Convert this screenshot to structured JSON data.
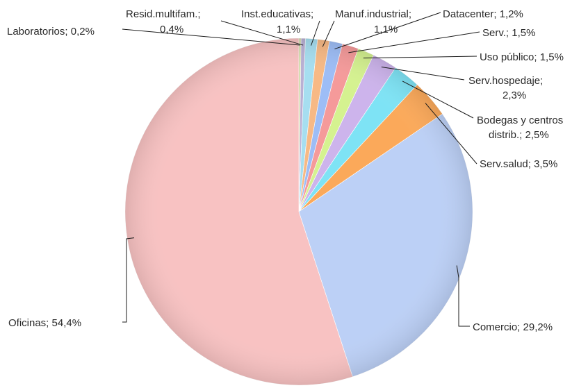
{
  "chart_data": {
    "type": "pie",
    "title": "",
    "slices": [
      {
        "name": "Laboratorios",
        "value": 0.2,
        "label": "Laboratorios; 0,2%",
        "color": "#c9d59a"
      },
      {
        "name": "Resid.multifam.",
        "value": 0.4,
        "label_lines": [
          "Resid.multifam.;",
          "0,4%"
        ],
        "color": "#b9b0d4"
      },
      {
        "name": "Inst.educativas",
        "value": 1.1,
        "label_lines": [
          "Inst.educativas;",
          "1,1%"
        ],
        "color": "#a6def0"
      },
      {
        "name": "Manuf.industrial",
        "value": 1.1,
        "label_lines": [
          "Manuf.industrial;",
          "1,1%"
        ],
        "color": "#f7b985"
      },
      {
        "name": "Datacenter",
        "value": 1.2,
        "label": "Datacenter; 1,2%",
        "color": "#9dbdf6"
      },
      {
        "name": "Serv.",
        "value": 1.5,
        "label": "Serv.; 1,5%",
        "color": "#f59a9a"
      },
      {
        "name": "Uso público",
        "value": 1.5,
        "label": "Uso público; 1,5%",
        "color": "#d5f290"
      },
      {
        "name": "Serv.hospedaje",
        "value": 2.3,
        "label_lines": [
          "Serv.hospedaje;",
          "2,3%"
        ],
        "color": "#cdb4ec"
      },
      {
        "name": "Bodegas y centros distrib.",
        "value": 2.5,
        "label_lines": [
          "Bodegas y centros",
          "distrib.; 2,5%"
        ],
        "color": "#7ee3f5"
      },
      {
        "name": "Serv.salud",
        "value": 3.5,
        "label": "Serv.salud; 3,5%",
        "color": "#fba95a"
      },
      {
        "name": "Comercio",
        "value": 29.2,
        "label": "Comercio; 29,2%",
        "color": "#bcd0f6"
      },
      {
        "name": "Oficinas",
        "value": 54.4,
        "label": "Oficinas; 54,4%",
        "color": "#f8c2c2"
      }
    ]
  }
}
